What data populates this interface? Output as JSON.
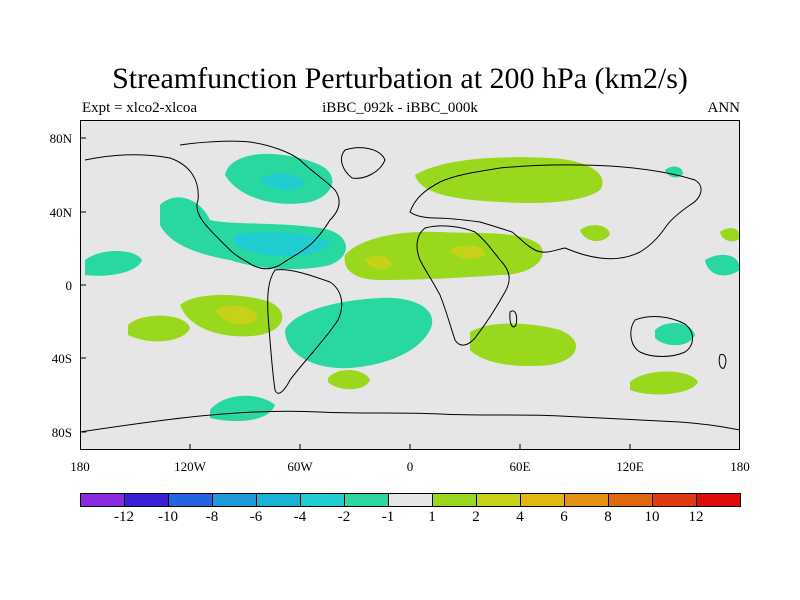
{
  "title": "Streamfunction Perturbation at 200 hPa (km2/s)",
  "subtitle": {
    "left": "Expt = xlco2-xlcoa",
    "center": "iBBC_092k - iBBC_000k",
    "right": "ANN"
  },
  "yaxis": [
    "80N",
    "40N",
    "0",
    "40S",
    "80S"
  ],
  "xaxis": [
    "180",
    "120W",
    "60W",
    "0",
    "60E",
    "120E",
    "180"
  ],
  "colorbar": {
    "colors": [
      "#8a2be2",
      "#3a20d8",
      "#2066e0",
      "#1e9ad8",
      "#18b4d8",
      "#20cdd0",
      "#28d8a0",
      "#e6e6e6",
      "#9ad81e",
      "#c6d218",
      "#e0b810",
      "#e49010",
      "#e06810",
      "#e03a10",
      "#e00a0a"
    ],
    "labels": [
      "-12",
      "-10",
      "-8",
      "-6",
      "-4",
      "-2",
      "-1",
      "1",
      "2",
      "4",
      "6",
      "8",
      "10",
      "12"
    ]
  },
  "colors": {
    "neutral": "#e6e6e6",
    "neg1": "#28d8a0",
    "neg2": "#20cdd0",
    "pos1": "#9ad81e",
    "pos2": "#c6d218",
    "pos3": "#e0b810"
  }
}
